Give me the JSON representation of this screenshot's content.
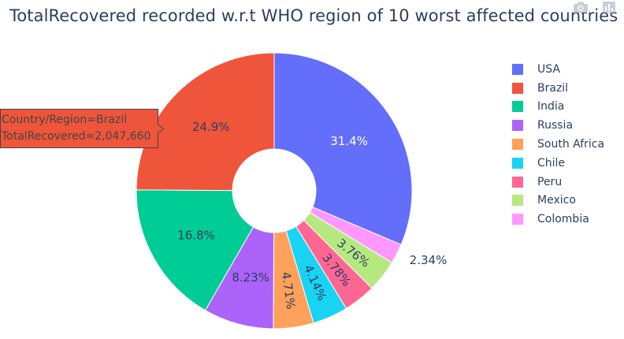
{
  "title": "TotalRecovered recorded w.r.t WHO region of 10 worst affected countries",
  "modebar": {
    "icons": [
      "camera-icon",
      "bar-chart-icon"
    ]
  },
  "chart_data": {
    "type": "pie",
    "hole": true,
    "slices": [
      {
        "label": "USA",
        "percent": 31.4,
        "percent_label": "31.4%",
        "color": "#636efa",
        "text_color": "#ffffff",
        "label_position": "inside"
      },
      {
        "label": "Colombia",
        "percent": 2.34,
        "percent_label": "2.34%",
        "color": "#ff97ff",
        "text_color": "#2a3f5f",
        "label_position": "outside"
      },
      {
        "label": "Mexico",
        "percent": 3.76,
        "percent_label": "3.76%",
        "color": "#b6e880",
        "text_color": "#2a3f5f",
        "label_position": "inside"
      },
      {
        "label": "Peru",
        "percent": 3.78,
        "percent_label": "3.78%",
        "color": "#ff6692",
        "text_color": "#2a3f5f",
        "label_position": "inside"
      },
      {
        "label": "Chile",
        "percent": 4.14,
        "percent_label": "4.14%",
        "color": "#19d3f3",
        "text_color": "#2a3f5f",
        "label_position": "inside"
      },
      {
        "label": "South Africa",
        "percent": 4.71,
        "percent_label": "4.71%",
        "color": "#ffa15a",
        "text_color": "#2a3f5f",
        "label_position": "inside"
      },
      {
        "label": "Russia",
        "percent": 8.23,
        "percent_label": "8.23%",
        "color": "#ab63fa",
        "text_color": "#2a3f5f",
        "label_position": "inside"
      },
      {
        "label": "India",
        "percent": 16.8,
        "percent_label": "16.8%",
        "color": "#00cc96",
        "text_color": "#2a3f5f",
        "label_position": "inside"
      },
      {
        "label": "Brazil",
        "percent": 24.9,
        "percent_label": "24.9%",
        "color": "#ef553b",
        "text_color": "#2a3f5f",
        "label_position": "inside"
      }
    ],
    "legend": {
      "placement": "right",
      "order": [
        "USA",
        "Brazil",
        "India",
        "Russia",
        "South Africa",
        "Chile",
        "Peru",
        "Mexico",
        "Colombia"
      ]
    },
    "hover": {
      "slice": "Brazil",
      "line1": "Country/Region=Brazil",
      "line2": "TotalRecovered=2,047,660",
      "color": "#ef553b"
    }
  }
}
